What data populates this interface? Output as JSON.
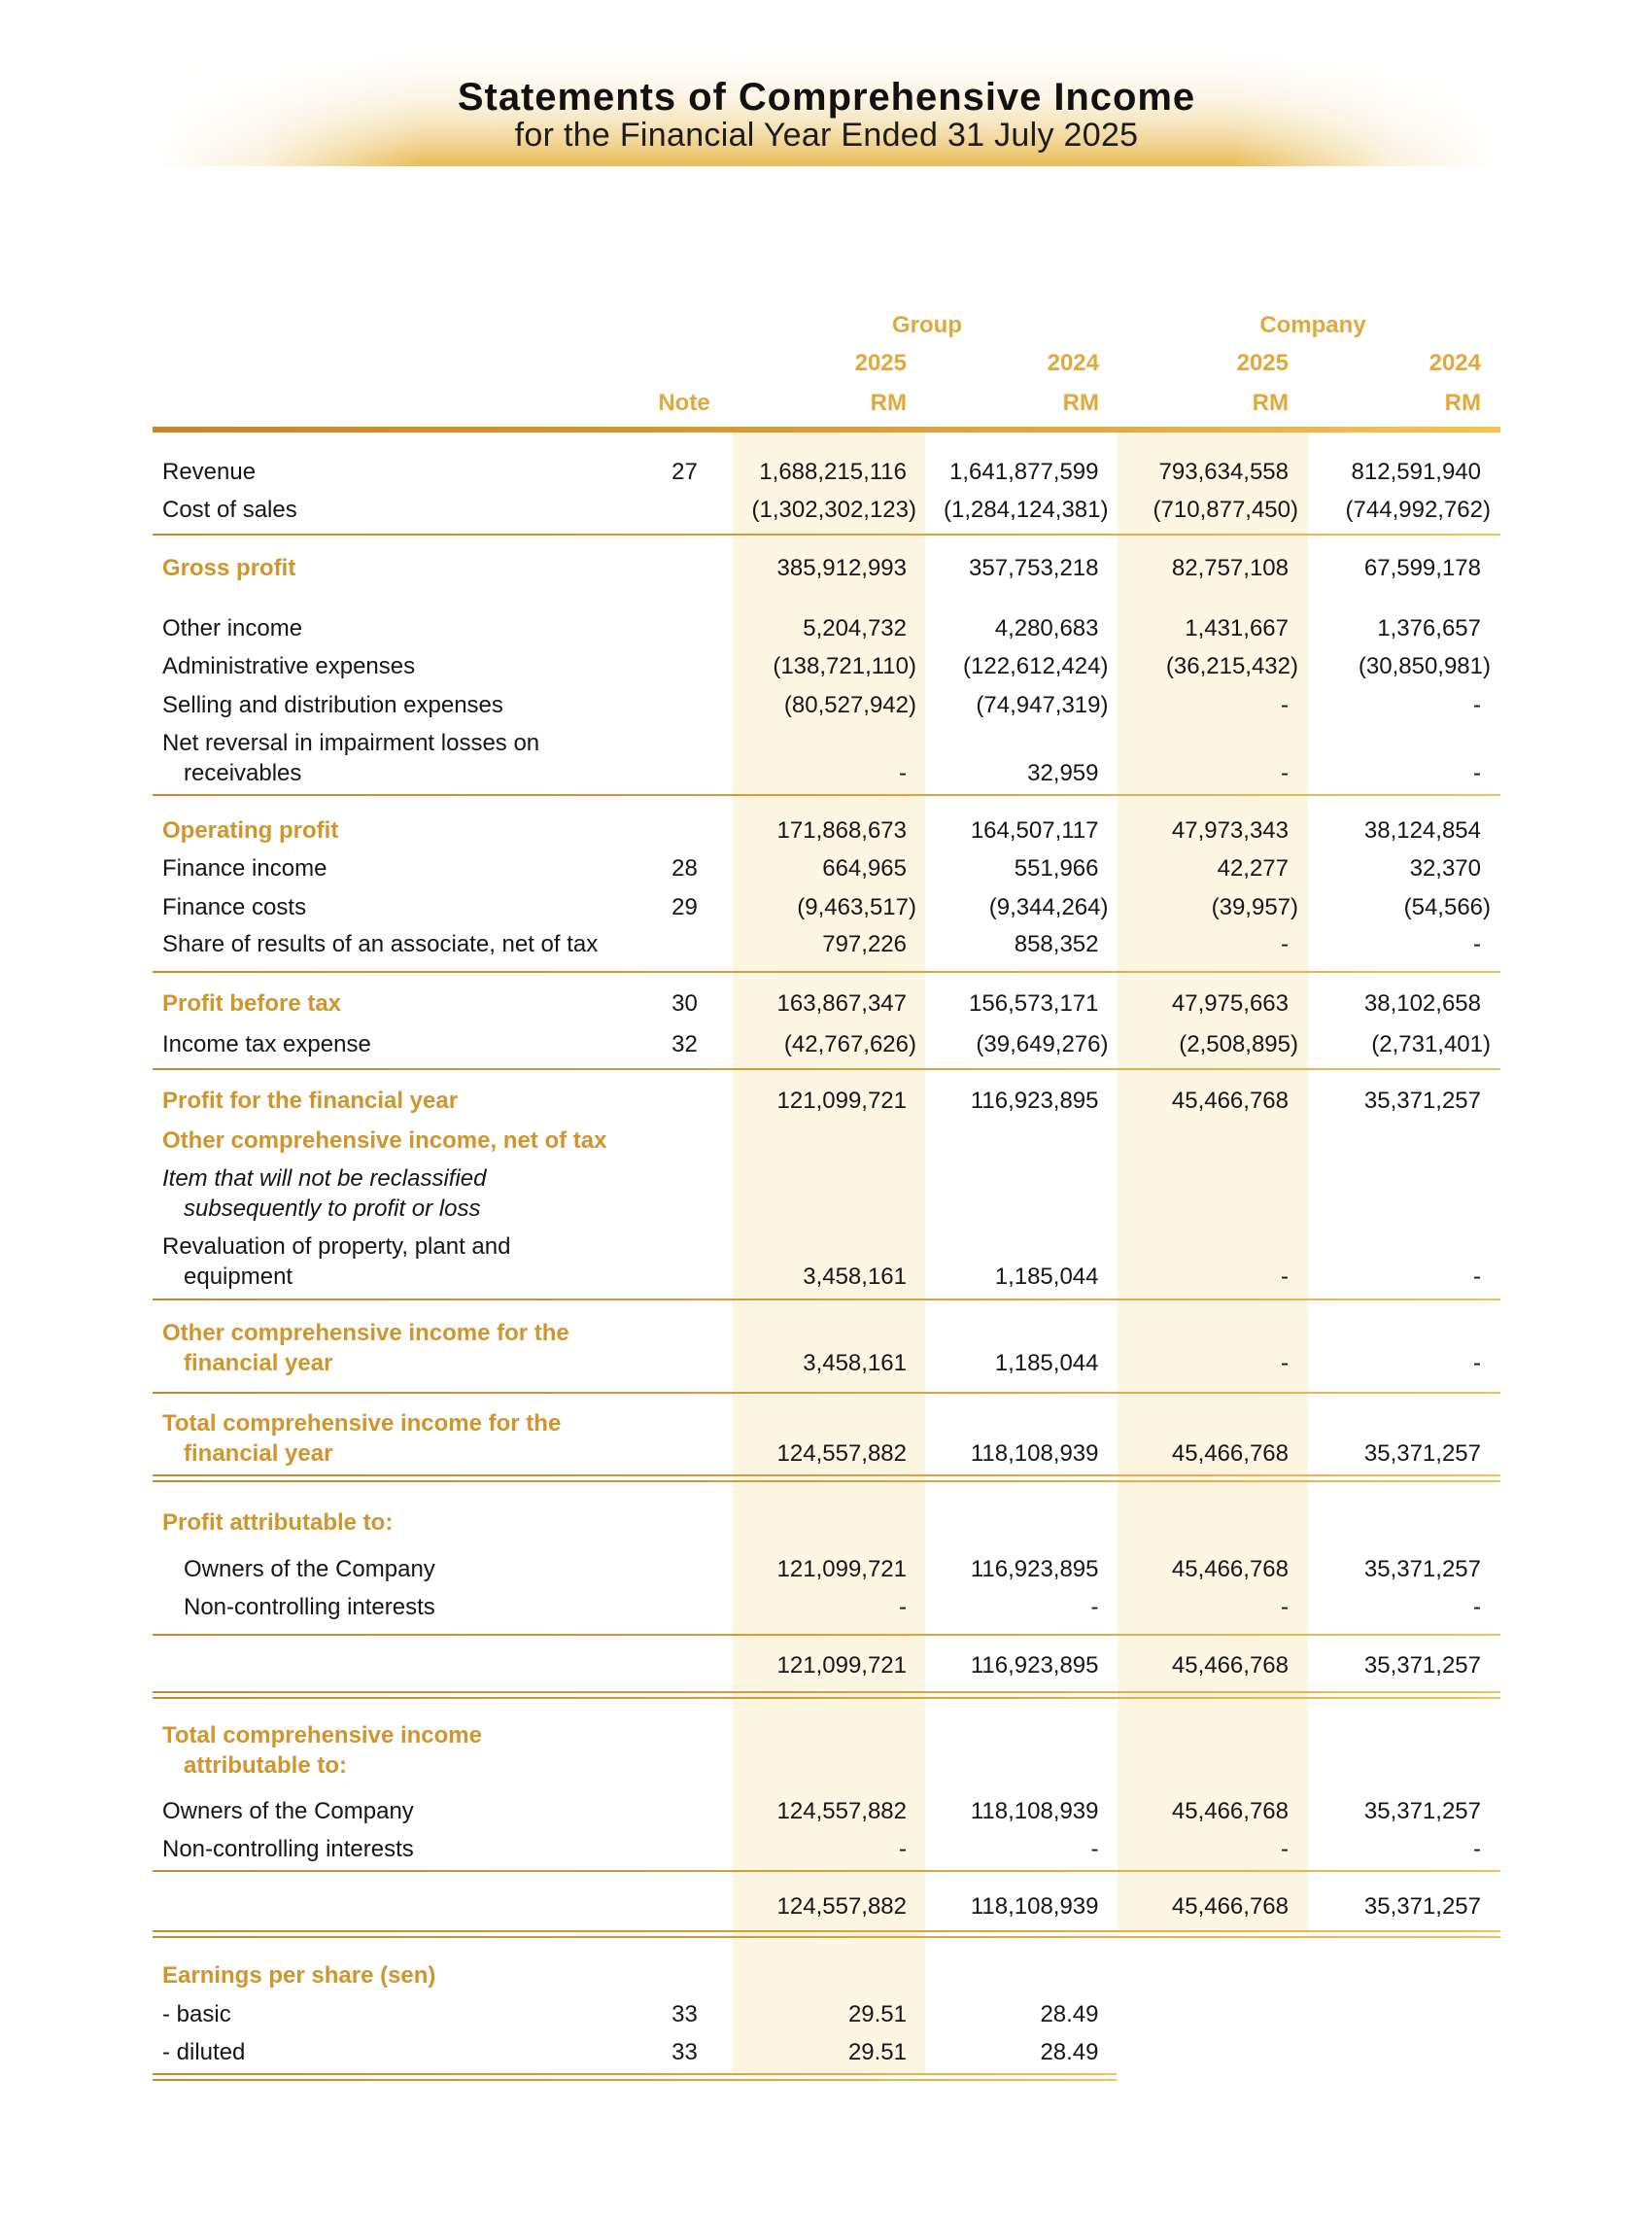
{
  "document": {
    "title": "Statements of Comprehensive Income",
    "subtitle": "for the Financial Year Ended 31 July 2025"
  },
  "colors": {
    "gold_text_header": "#e2a83c",
    "gold_text_label": "#d0952d",
    "gold_band": "#e7b64a",
    "column_shade": "#fbf5e2",
    "rule_dark": "#c2801f",
    "rule_light": "#f4c44c",
    "body_text": "#161616"
  },
  "table": {
    "group_header": "Group",
    "company_header": "Company",
    "note_header": "Note",
    "year_headers": [
      "2025",
      "2024",
      "2025",
      "2024"
    ],
    "currency_headers": [
      "RM",
      "RM",
      "RM",
      "RM"
    ],
    "rows": [
      {
        "id": "revenue",
        "lines": [
          "Revenue"
        ],
        "style": "normal",
        "note": "27",
        "values": [
          "1,688,215,116",
          "1,641,877,599",
          "793,634,558",
          "812,591,940"
        ]
      },
      {
        "id": "cost-of-sales",
        "lines": [
          "Cost of sales"
        ],
        "style": "normal",
        "note": "",
        "values": [
          "(1,302,302,123)",
          "(1,284,124,381)",
          "(710,877,450)",
          "(744,992,762)"
        ]
      },
      {
        "id": "gross-profit",
        "lines": [
          "Gross profit"
        ],
        "style": "gold",
        "note": "",
        "values": [
          "385,912,993",
          "357,753,218",
          "82,757,108",
          "67,599,178"
        ]
      },
      {
        "id": "other-income",
        "lines": [
          "Other income"
        ],
        "style": "normal",
        "note": "",
        "values": [
          "5,204,732",
          "4,280,683",
          "1,431,667",
          "1,376,657"
        ]
      },
      {
        "id": "administrative-expenses",
        "lines": [
          "Administrative expenses"
        ],
        "style": "normal",
        "note": "",
        "values": [
          "(138,721,110)",
          "(122,612,424)",
          "(36,215,432)",
          "(30,850,981)"
        ]
      },
      {
        "id": "selling-distribution-expenses",
        "lines": [
          "Selling and distribution expenses"
        ],
        "style": "normal",
        "note": "",
        "values": [
          "(80,527,942)",
          "(74,947,319)",
          "-",
          "-"
        ]
      },
      {
        "id": "net-reversal-impairment",
        "lines": [
          "Net reversal in impairment losses on",
          "receivables"
        ],
        "style": "normal",
        "note": "",
        "values": [
          "-",
          "32,959",
          "-",
          "-"
        ]
      },
      {
        "id": "operating-profit",
        "lines": [
          "Operating profit"
        ],
        "style": "gold",
        "note": "",
        "values": [
          "171,868,673",
          "164,507,117",
          "47,973,343",
          "38,124,854"
        ]
      },
      {
        "id": "finance-income",
        "lines": [
          "Finance income"
        ],
        "style": "normal",
        "note": "28",
        "values": [
          "664,965",
          "551,966",
          "42,277",
          "32,370"
        ]
      },
      {
        "id": "finance-costs",
        "lines": [
          "Finance costs"
        ],
        "style": "normal",
        "note": "29",
        "values": [
          "(9,463,517)",
          "(9,344,264)",
          "(39,957)",
          "(54,566)"
        ]
      },
      {
        "id": "share-of-results-associate",
        "lines": [
          "Share of results of an associate, net of tax"
        ],
        "style": "normal",
        "note": "",
        "values": [
          "797,226",
          "858,352",
          "-",
          "-"
        ]
      },
      {
        "id": "profit-before-tax",
        "lines": [
          "Profit before tax"
        ],
        "style": "gold",
        "note": "30",
        "values": [
          "163,867,347",
          "156,573,171",
          "47,975,663",
          "38,102,658"
        ]
      },
      {
        "id": "income-tax-expense",
        "lines": [
          "Income tax expense"
        ],
        "style": "normal",
        "note": "32",
        "values": [
          "(42,767,626)",
          "(39,649,276)",
          "(2,508,895)",
          "(2,731,401)"
        ]
      },
      {
        "id": "profit-for-year",
        "lines": [
          "Profit for the financial year"
        ],
        "style": "gold",
        "note": "",
        "values": [
          "121,099,721",
          "116,923,895",
          "45,466,768",
          "35,371,257"
        ]
      },
      {
        "id": "oci-net-of-tax",
        "lines": [
          "Other comprehensive income, net of tax"
        ],
        "style": "gold",
        "note": "",
        "values": [
          "",
          "",
          "",
          ""
        ]
      },
      {
        "id": "item-not-reclassified",
        "lines": [
          "Item that will not be reclassified",
          "subsequently to profit or loss"
        ],
        "style": "italic",
        "note": "",
        "values": [
          "",
          "",
          "",
          ""
        ]
      },
      {
        "id": "revaluation-ppe",
        "lines": [
          "Revaluation of property, plant and",
          "equipment"
        ],
        "style": "normal",
        "note": "",
        "values": [
          "3,458,161",
          "1,185,044",
          "-",
          "-"
        ]
      },
      {
        "id": "oci-for-year",
        "lines": [
          "Other comprehensive income for the",
          "financial year"
        ],
        "style": "gold",
        "note": "",
        "values": [
          "3,458,161",
          "1,185,044",
          "-",
          "-"
        ]
      },
      {
        "id": "total-comprehensive-income-year",
        "lines": [
          "Total comprehensive income for the",
          "financial year"
        ],
        "style": "gold",
        "note": "",
        "values": [
          "124,557,882",
          "118,108,939",
          "45,466,768",
          "35,371,257"
        ]
      },
      {
        "id": "profit-attributable-heading",
        "lines": [
          "Profit attributable to:"
        ],
        "style": "gold",
        "note": "",
        "values": [
          "",
          "",
          "",
          ""
        ]
      },
      {
        "id": "profit-owners",
        "lines": [
          "Owners of the Company"
        ],
        "style": "normal",
        "indent": true,
        "note": "",
        "values": [
          "121,099,721",
          "116,923,895",
          "45,466,768",
          "35,371,257"
        ]
      },
      {
        "id": "profit-nci",
        "lines": [
          "Non-controlling interests"
        ],
        "style": "normal",
        "indent": true,
        "note": "",
        "values": [
          "-",
          "-",
          "-",
          "-"
        ]
      },
      {
        "id": "profit-attributable-total",
        "lines": [
          ""
        ],
        "style": "normal",
        "note": "",
        "values": [
          "121,099,721",
          "116,923,895",
          "45,466,768",
          "35,371,257"
        ]
      },
      {
        "id": "tci-attributable-heading",
        "lines": [
          "Total comprehensive income",
          "attributable to:"
        ],
        "style": "gold",
        "note": "",
        "values": [
          "",
          "",
          "",
          ""
        ]
      },
      {
        "id": "tci-owners",
        "lines": [
          "Owners of the Company"
        ],
        "style": "normal",
        "note": "",
        "values": [
          "124,557,882",
          "118,108,939",
          "45,466,768",
          "35,371,257"
        ]
      },
      {
        "id": "tci-nci",
        "lines": [
          "Non-controlling interests"
        ],
        "style": "normal",
        "note": "",
        "values": [
          "-",
          "-",
          "-",
          "-"
        ]
      },
      {
        "id": "tci-attributable-total",
        "lines": [
          ""
        ],
        "style": "normal",
        "note": "",
        "values": [
          "124,557,882",
          "118,108,939",
          "45,466,768",
          "35,371,257"
        ]
      },
      {
        "id": "eps-heading",
        "lines": [
          "Earnings per share (sen)"
        ],
        "style": "gold",
        "note": "",
        "values": [
          "",
          "",
          "",
          ""
        ]
      },
      {
        "id": "eps-basic",
        "lines": [
          "- basic"
        ],
        "style": "normal",
        "note": "33",
        "values": [
          "29.51",
          "28.49",
          "",
          ""
        ]
      },
      {
        "id": "eps-diluted",
        "lines": [
          "- diluted"
        ],
        "style": "normal",
        "note": "33",
        "values": [
          "29.51",
          "28.49",
          "",
          ""
        ]
      }
    ]
  }
}
